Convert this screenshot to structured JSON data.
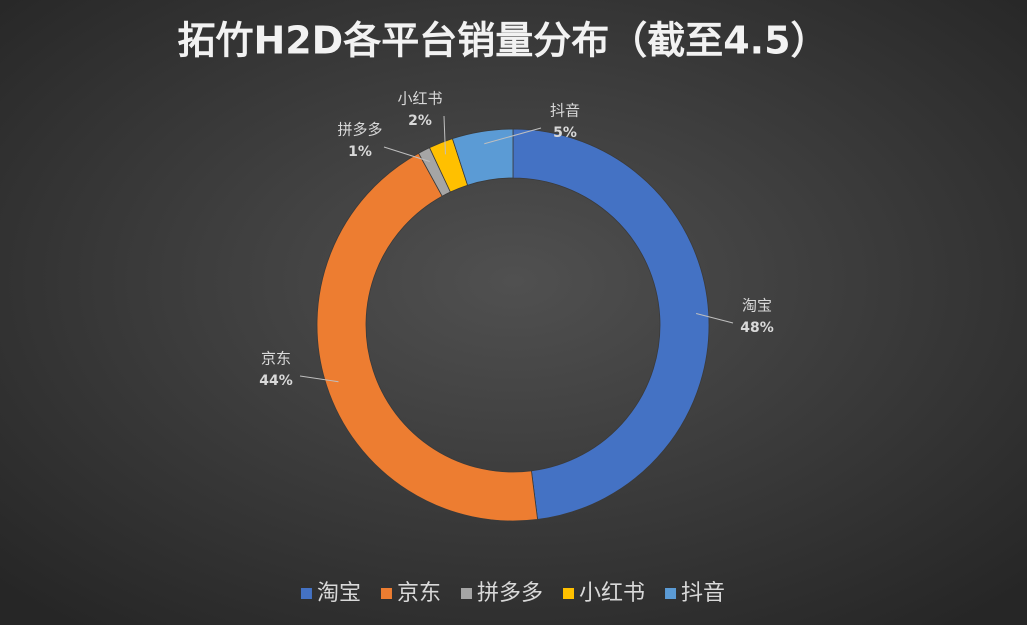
{
  "chart_data": {
    "type": "donut",
    "title": "拓竹H2D各平台销量分布（截至4.5）",
    "categories": [
      "淘宝",
      "京东",
      "拼多多",
      "小红书",
      "抖音"
    ],
    "values": [
      48,
      44,
      1,
      2,
      5
    ],
    "value_labels": [
      "48%",
      "44%",
      "1%",
      "2%",
      "5%"
    ],
    "colors": [
      "#4472c4",
      "#ed7d31",
      "#a5a5a5",
      "#ffc000",
      "#5b9bd5"
    ],
    "legend": "bottom"
  }
}
